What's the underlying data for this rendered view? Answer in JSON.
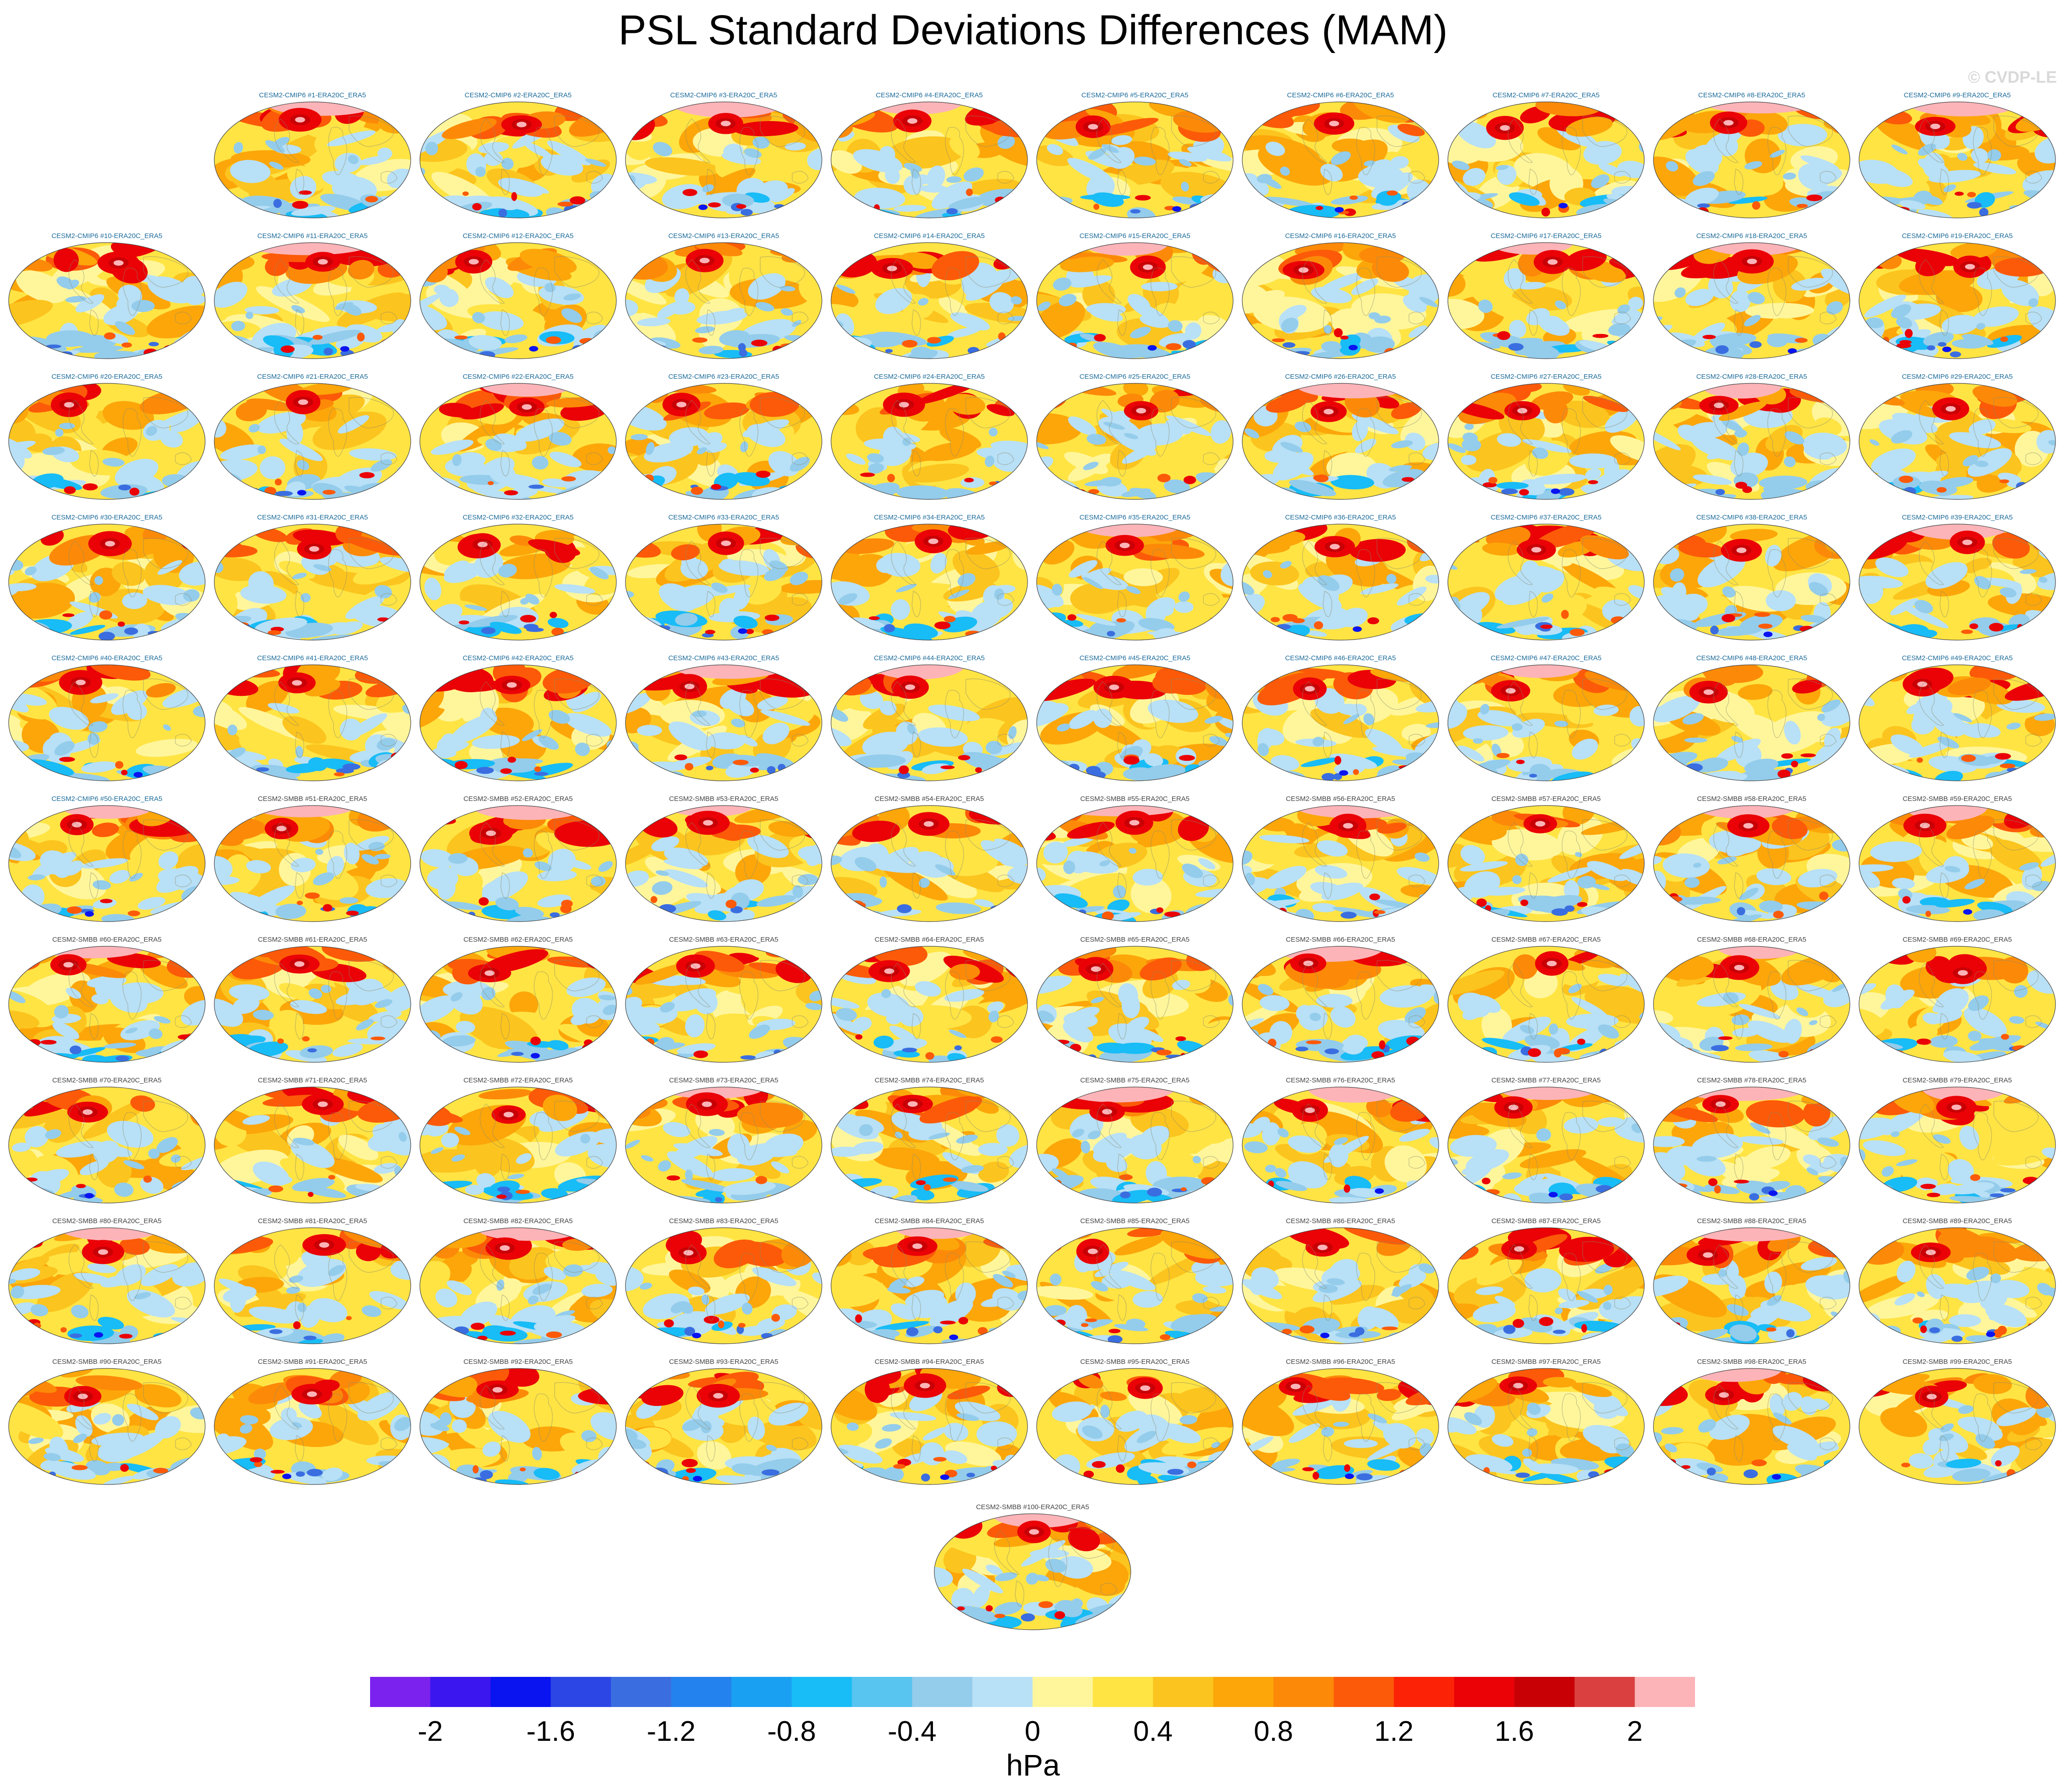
{
  "title": "PSL Standard Deviations Differences (MAM)",
  "watermark": "© CVDP-LE",
  "chart_data": {
    "type": "heatmap",
    "title": "PSL Standard Deviations Differences (MAM)",
    "panel_count": 100,
    "panel_labels_sample_first": "CESM2-CMIP6 #1-ERA20C_ERA5",
    "panel_labels_sample_last": "CESM2-SMBB #100-ERA20C_ERA5",
    "panels": [
      "CESM2-CMIP6 #1-ERA20C_ERA5",
      "CESM2-CMIP6 #2-ERA20C_ERA5",
      "CESM2-CMIP6 #3-ERA20C_ERA5",
      "CESM2-CMIP6 #4-ERA20C_ERA5",
      "CESM2-CMIP6 #5-ERA20C_ERA5",
      "CESM2-CMIP6 #6-ERA20C_ERA5",
      "CESM2-CMIP6 #7-ERA20C_ERA5",
      "CESM2-CMIP6 #8-ERA20C_ERA5",
      "CESM2-CMIP6 #9-ERA20C_ERA5",
      "CESM2-CMIP6 #10-ERA20C_ERA5",
      "CESM2-CMIP6 #11-ERA20C_ERA5",
      "CESM2-CMIP6 #12-ERA20C_ERA5",
      "CESM2-CMIP6 #13-ERA20C_ERA5",
      "CESM2-CMIP6 #14-ERA20C_ERA5",
      "CESM2-CMIP6 #15-ERA20C_ERA5",
      "CESM2-CMIP6 #16-ERA20C_ERA5",
      "CESM2-CMIP6 #17-ERA20C_ERA5",
      "CESM2-CMIP6 #18-ERA20C_ERA5",
      "CESM2-CMIP6 #19-ERA20C_ERA5",
      "CESM2-CMIP6 #20-ERA20C_ERA5",
      "CESM2-CMIP6 #21-ERA20C_ERA5",
      "CESM2-CMIP6 #22-ERA20C_ERA5",
      "CESM2-CMIP6 #23-ERA20C_ERA5",
      "CESM2-CMIP6 #24-ERA20C_ERA5",
      "CESM2-CMIP6 #25-ERA20C_ERA5",
      "CESM2-CMIP6 #26-ERA20C_ERA5",
      "CESM2-CMIP6 #27-ERA20C_ERA5",
      "CESM2-CMIP6 #28-ERA20C_ERA5",
      "CESM2-CMIP6 #29-ERA20C_ERA5",
      "CESM2-CMIP6 #30-ERA20C_ERA5",
      "CESM2-CMIP6 #31-ERA20C_ERA5",
      "CESM2-CMIP6 #32-ERA20C_ERA5",
      "CESM2-CMIP6 #33-ERA20C_ERA5",
      "CESM2-CMIP6 #34-ERA20C_ERA5",
      "CESM2-CMIP6 #35-ERA20C_ERA5",
      "CESM2-CMIP6 #36-ERA20C_ERA5",
      "CESM2-CMIP6 #37-ERA20C_ERA5",
      "CESM2-CMIP6 #38-ERA20C_ERA5",
      "CESM2-CMIP6 #39-ERA20C_ERA5",
      "CESM2-CMIP6 #40-ERA20C_ERA5",
      "CESM2-CMIP6 #41-ERA20C_ERA5",
      "CESM2-CMIP6 #42-ERA20C_ERA5",
      "CESM2-CMIP6 #43-ERA20C_ERA5",
      "CESM2-CMIP6 #44-ERA20C_ERA5",
      "CESM2-CMIP6 #45-ERA20C_ERA5",
      "CESM2-CMIP6 #46-ERA20C_ERA5",
      "CESM2-CMIP6 #47-ERA20C_ERA5",
      "CESM2-CMIP6 #48-ERA20C_ERA5",
      "CESM2-CMIP6 #49-ERA20C_ERA5",
      "CESM2-CMIP6 #50-ERA20C_ERA5",
      "CESM2-SMBB #51-ERA20C_ERA5",
      "CESM2-SMBB #52-ERA20C_ERA5",
      "CESM2-SMBB #53-ERA20C_ERA5",
      "CESM2-SMBB #54-ERA20C_ERA5",
      "CESM2-SMBB #55-ERA20C_ERA5",
      "CESM2-SMBB #56-ERA20C_ERA5",
      "CESM2-SMBB #57-ERA20C_ERA5",
      "CESM2-SMBB #58-ERA20C_ERA5",
      "CESM2-SMBB #59-ERA20C_ERA5",
      "CESM2-SMBB #60-ERA20C_ERA5",
      "CESM2-SMBB #61-ERA20C_ERA5",
      "CESM2-SMBB #62-ERA20C_ERA5",
      "CESM2-SMBB #63-ERA20C_ERA5",
      "CESM2-SMBB #64-ERA20C_ERA5",
      "CESM2-SMBB #65-ERA20C_ERA5",
      "CESM2-SMBB #66-ERA20C_ERA5",
      "CESM2-SMBB #67-ERA20C_ERA5",
      "CESM2-SMBB #68-ERA20C_ERA5",
      "CESM2-SMBB #69-ERA20C_ERA5",
      "CESM2-SMBB #70-ERA20C_ERA5",
      "CESM2-SMBB #71-ERA20C_ERA5",
      "CESM2-SMBB #72-ERA20C_ERA5",
      "CESM2-SMBB #73-ERA20C_ERA5",
      "CESM2-SMBB #74-ERA20C_ERA5",
      "CESM2-SMBB #75-ERA20C_ERA5",
      "CESM2-SMBB #76-ERA20C_ERA5",
      "CESM2-SMBB #77-ERA20C_ERA5",
      "CESM2-SMBB #78-ERA20C_ERA5",
      "CESM2-SMBB #79-ERA20C_ERA5",
      "CESM2-SMBB #80-ERA20C_ERA5",
      "CESM2-SMBB #81-ERA20C_ERA5",
      "CESM2-SMBB #82-ERA20C_ERA5",
      "CESM2-SMBB #83-ERA20C_ERA5",
      "CESM2-SMBB #84-ERA20C_ERA5",
      "CESM2-SMBB #85-ERA20C_ERA5",
      "CESM2-SMBB #86-ERA20C_ERA5",
      "CESM2-SMBB #87-ERA20C_ERA5",
      "CESM2-SMBB #88-ERA20C_ERA5",
      "CESM2-SMBB #89-ERA20C_ERA5",
      "CESM2-SMBB #90-ERA20C_ERA5",
      "CESM2-SMBB #91-ERA20C_ERA5",
      "CESM2-SMBB #92-ERA20C_ERA5",
      "CESM2-SMBB #93-ERA20C_ERA5",
      "CESM2-SMBB #94-ERA20C_ERA5",
      "CESM2-SMBB #95-ERA20C_ERA5",
      "CESM2-SMBB #96-ERA20C_ERA5",
      "CESM2-SMBB #97-ERA20C_ERA5",
      "CESM2-SMBB #98-ERA20C_ERA5",
      "CESM2-SMBB #99-ERA20C_ERA5",
      "CESM2-SMBB #100-ERA20C_ERA5"
    ],
    "colorbar": {
      "units": "hPa",
      "range": [
        -2.2,
        2.2
      ],
      "step": 0.2,
      "tick_labels": [
        "-2",
        "-1.6",
        "-1.2",
        "-0.8",
        "-0.4",
        "0",
        "0.4",
        "0.8",
        "1.2",
        "1.6",
        "2"
      ],
      "tick_values": [
        -2,
        -1.6,
        -1.2,
        -0.8,
        -0.4,
        0,
        0.4,
        0.8,
        1.2,
        1.6,
        2
      ],
      "colors": [
        "#7b22ee",
        "#3c16ee",
        "#0a14f0",
        "#2c46e6",
        "#3a6ee0",
        "#2482ee",
        "#1aa0f2",
        "#18bcf6",
        "#58c4f0",
        "#94cceb",
        "#b8e0f6",
        "#fff69c",
        "#ffe444",
        "#fcc41e",
        "#fca60a",
        "#fc8a08",
        "#fc5a08",
        "#fc2206",
        "#ea0206",
        "#c80006",
        "#da4040",
        "#fcb4b8"
      ]
    }
  }
}
